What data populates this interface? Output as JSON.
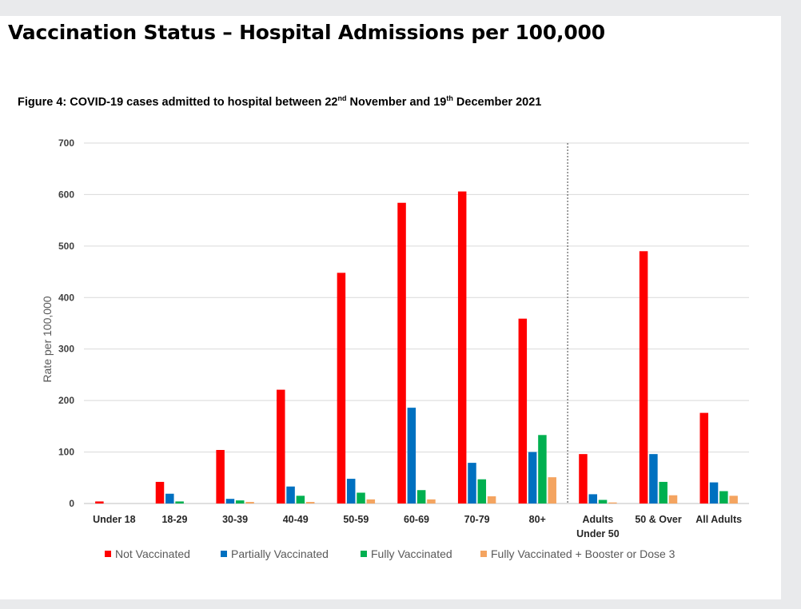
{
  "header": {
    "title": "Vaccination Status – Hospital Admissions per 100,000",
    "figure_label": "Figure 4: COVID-19 cases admitted to hospital between 22",
    "figure_sup1": "nd",
    "figure_mid": " November and 19",
    "figure_sup2": "th",
    "figure_end": " December 2021"
  },
  "chart_data": {
    "type": "bar",
    "title": "Figure 4: COVID-19 cases admitted to hospital between 22nd November and 19th December 2021",
    "xlabel": "",
    "ylabel": "Rate per 100,000",
    "ylim": [
      0,
      700
    ],
    "yticks": [
      0,
      100,
      200,
      300,
      400,
      500,
      600,
      700
    ],
    "grid": true,
    "legend_position": "bottom",
    "divider_after_category": "80+",
    "categories": [
      "Under 18",
      "18-29",
      "30-39",
      "40-49",
      "50-59",
      "60-69",
      "70-79",
      "80+",
      "Adults Under 50",
      "50 & Over",
      "All Adults"
    ],
    "category_label_lines": [
      [
        "Under 18"
      ],
      [
        "18-29"
      ],
      [
        "30-39"
      ],
      [
        "40-49"
      ],
      [
        "50-59"
      ],
      [
        "60-69"
      ],
      [
        "70-79"
      ],
      [
        "80+"
      ],
      [
        "Adults",
        "Under 50"
      ],
      [
        "50 & Over"
      ],
      [
        "All Adults"
      ]
    ],
    "series": [
      {
        "name": "Not Vaccinated",
        "color": "#ff0000",
        "values": [
          4,
          42,
          104,
          221,
          448,
          584,
          606,
          359,
          96,
          490,
          176
        ]
      },
      {
        "name": "Partially Vaccinated",
        "color": "#0070c0",
        "values": [
          0,
          19,
          9,
          33,
          48,
          186,
          79,
          100,
          18,
          96,
          41
        ]
      },
      {
        "name": "Fully Vaccinated",
        "color": "#00b050",
        "values": [
          0,
          4,
          6,
          15,
          21,
          26,
          47,
          133,
          7,
          42,
          24
        ]
      },
      {
        "name": "Fully Vaccinated + Booster or Dose 3",
        "color": "#f4a460",
        "values": [
          0,
          0,
          3,
          3,
          8,
          8,
          14,
          51,
          2,
          16,
          15
        ]
      }
    ]
  }
}
